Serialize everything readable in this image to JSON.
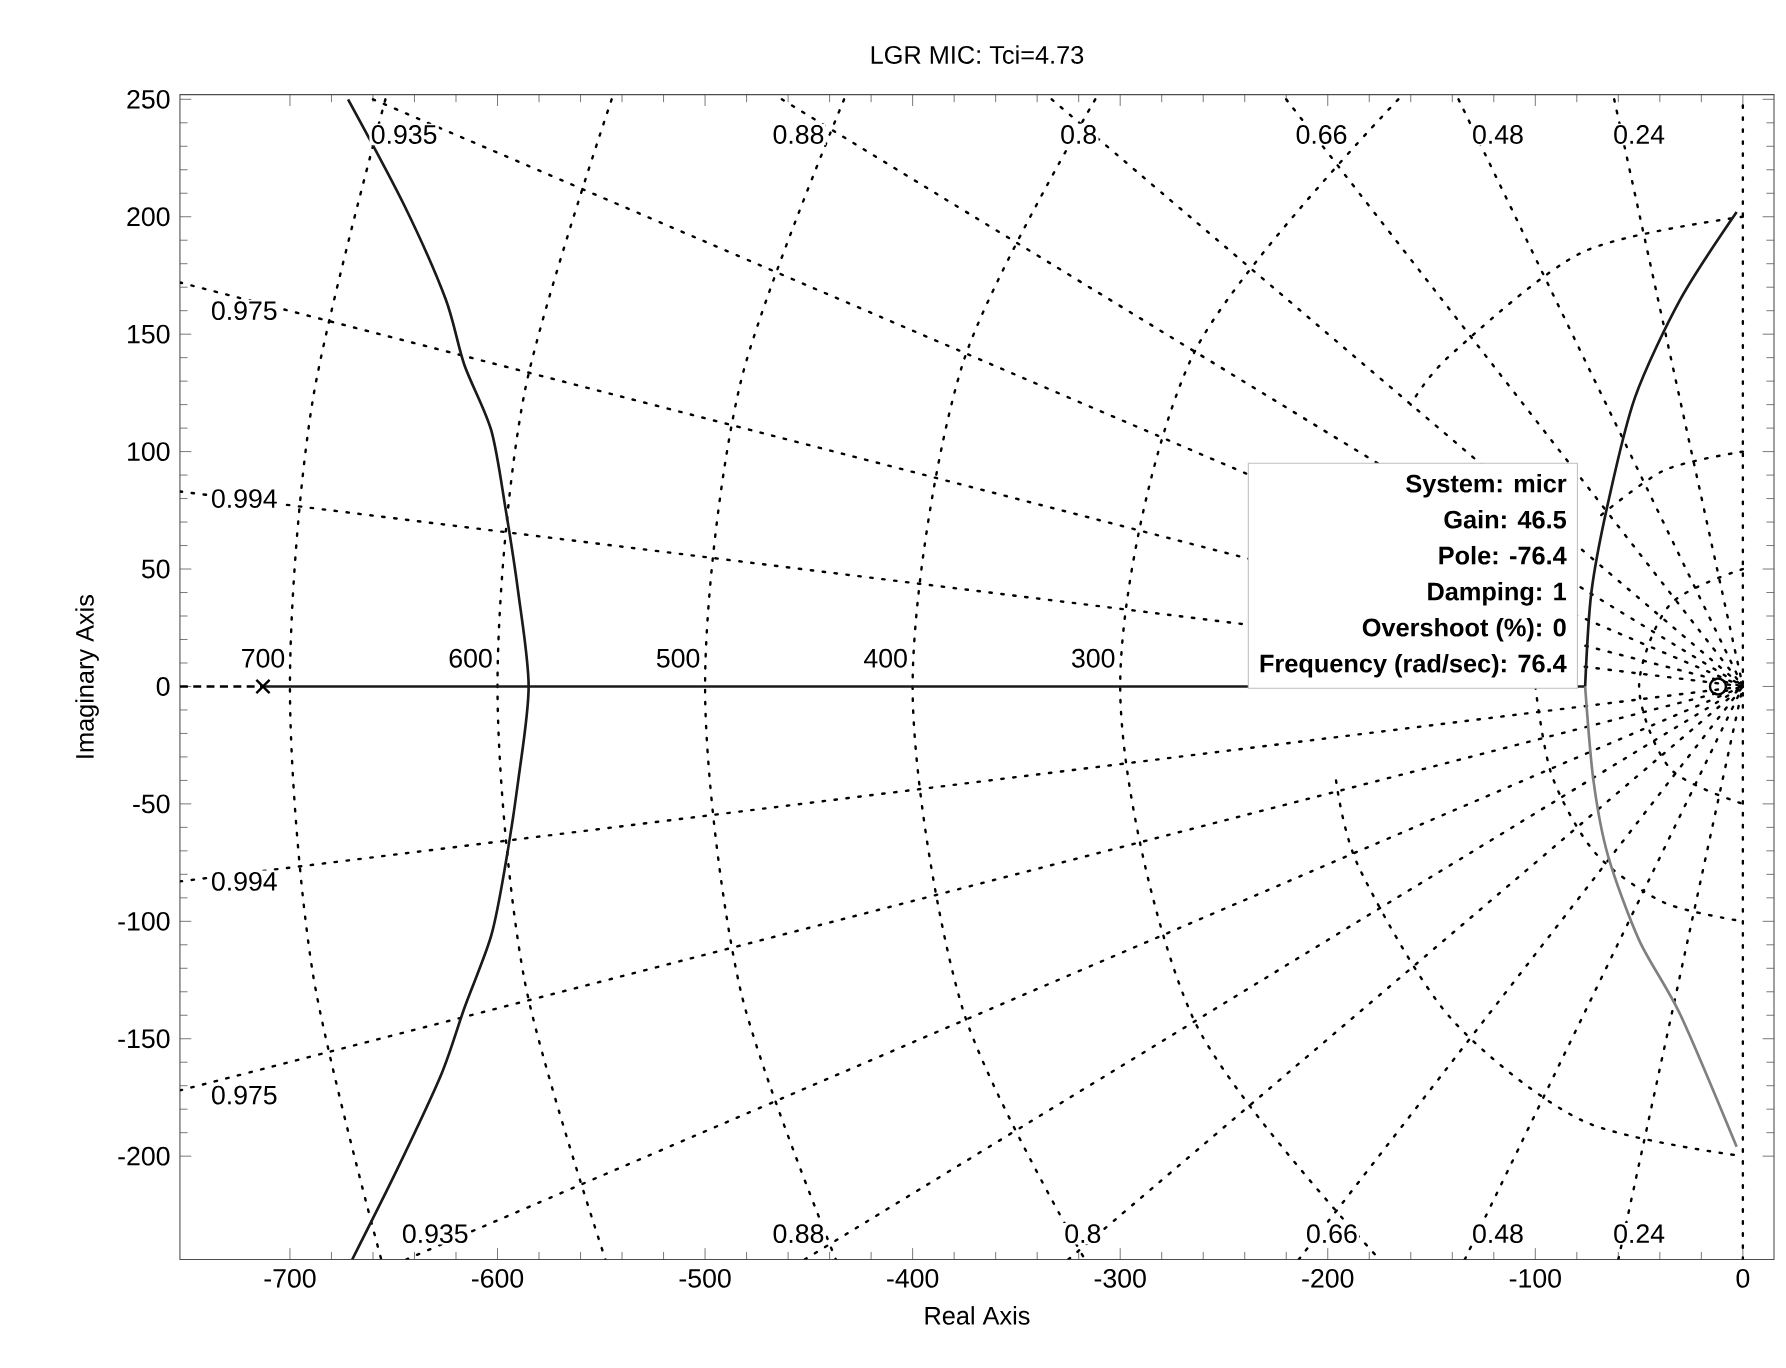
{
  "chart_data": {
    "type": "line",
    "title": "LGR MIC: Tci=4.73",
    "xlabel": "Real Axis",
    "ylabel": "Imaginary Axis",
    "xlim": [
      -753,
      15
    ],
    "ylim": [
      -244,
      252
    ],
    "xticks": [
      -700,
      -600,
      -500,
      -400,
      -300,
      -200,
      -100,
      0
    ],
    "yticks": [
      -200,
      -150,
      -100,
      -50,
      0,
      50,
      100,
      150,
      200,
      250
    ],
    "series": [
      {
        "type": "line",
        "color": "#000000",
        "line_style": "dotted",
        "x": [
          -753,
          0
        ],
        "values": [
          83,
          0
        ]
      },
      {
        "type": "line",
        "color": "#000000",
        "line_style": "dotted",
        "x": [
          -753,
          0
        ],
        "values": [
          -83,
          0
        ]
      },
      {
        "type": "line",
        "color": "#000000",
        "line_style": "dotted",
        "x": [
          -753,
          0
        ],
        "values": [
          172,
          0
        ]
      },
      {
        "type": "line",
        "color": "#000000",
        "line_style": "dotted",
        "x": [
          -753,
          0
        ],
        "values": [
          -172,
          0
        ]
      },
      {
        "type": "line",
        "color": "#000000",
        "line_style": "dotted",
        "x": [
          -660,
          0
        ],
        "values": [
          250,
          0
        ]
      },
      {
        "type": "line",
        "color": "#000000",
        "line_style": "dotted",
        "x": [
          -644,
          0
        ],
        "values": [
          -244,
          0
        ]
      },
      {
        "type": "line",
        "color": "#000000",
        "line_style": "dotted",
        "x": [
          -463,
          0
        ],
        "values": [
          250,
          0
        ]
      },
      {
        "type": "line",
        "color": "#000000",
        "line_style": "dotted",
        "x": [
          -452,
          0
        ],
        "values": [
          -244,
          0
        ]
      },
      {
        "type": "line",
        "color": "#000000",
        "line_style": "dotted",
        "x": [
          -333,
          0
        ],
        "values": [
          250,
          0
        ]
      },
      {
        "type": "line",
        "color": "#000000",
        "line_style": "dotted",
        "x": [
          -325,
          0
        ],
        "values": [
          -244,
          0
        ]
      },
      {
        "type": "line",
        "color": "#000000",
        "line_style": "dotted",
        "x": [
          -220,
          0
        ],
        "values": [
          250,
          0
        ]
      },
      {
        "type": "line",
        "color": "#000000",
        "line_style": "dotted",
        "x": [
          -214,
          0
        ],
        "values": [
          -244,
          0
        ]
      },
      {
        "type": "line",
        "color": "#000000",
        "line_style": "dotted",
        "x": [
          -137,
          0
        ],
        "values": [
          250,
          0
        ]
      },
      {
        "type": "line",
        "color": "#000000",
        "line_style": "dotted",
        "x": [
          -134,
          0
        ],
        "values": [
          -244,
          0
        ]
      },
      {
        "type": "line",
        "color": "#000000",
        "line_style": "dotted",
        "x": [
          -62,
          0
        ],
        "values": [
          250,
          0
        ]
      },
      {
        "type": "line",
        "color": "#000000",
        "line_style": "dotted",
        "x": [
          -60,
          0
        ],
        "values": [
          -244,
          0
        ]
      },
      {
        "type": "line",
        "color": "#000000",
        "line_style": "dotted",
        "x": [
          0,
          0,
          0
        ],
        "values": [
          -244,
          0,
          250
        ]
      },
      {
        "type": "line",
        "color": "#000000",
        "line_style": "dotted",
        "x": [
          -654,
          -689,
          -700,
          -689,
          -656
        ],
        "values": [
          250,
          122,
          0,
          -122,
          -244
        ]
      },
      {
        "type": "line",
        "color": "#000000",
        "line_style": "dotted",
        "x": [
          -545,
          -587,
          -600,
          -587,
          -548
        ],
        "values": [
          250,
          125,
          0,
          -125,
          -244
        ]
      },
      {
        "type": "line",
        "color": "#000000",
        "line_style": "dotted",
        "x": [
          -433,
          -483,
          -500,
          -483,
          -437
        ],
        "values": [
          250,
          129,
          0,
          -129,
          -244
        ]
      },
      {
        "type": "line",
        "color": "#000000",
        "line_style": "dotted",
        "x": [
          -312,
          -376,
          -400,
          -376,
          -317
        ],
        "values": [
          250,
          137,
          0,
          -137,
          -244
        ]
      },
      {
        "type": "line",
        "color": "#000000",
        "line_style": "dotted",
        "x": [
          -166,
          -265,
          -300,
          -265,
          -175
        ],
        "values": [
          250,
          141,
          0,
          -141,
          -244
        ]
      },
      {
        "type": "line",
        "color": "#000000",
        "line_style": "dotted",
        "x": [
          0,
          -77,
          -141,
          -160
        ],
        "values": [
          200,
          185,
          141,
          120
        ]
      },
      {
        "type": "line",
        "color": "#000000",
        "line_style": "dotted",
        "x": [
          -196,
          -185,
          -141,
          -77,
          0
        ],
        "values": [
          -40,
          -77,
          -141,
          -185,
          -200
        ]
      },
      {
        "type": "line",
        "color": "#000000",
        "line_style": "dotted",
        "x": [
          0,
          -38,
          -71,
          -92,
          -100,
          -92,
          -71,
          -38,
          0
        ],
        "values": [
          100,
          92,
          71,
          null,
          0,
          -38,
          -71,
          -92,
          -100
        ]
      },
      {
        "type": "line",
        "color": "#000000",
        "line_style": "dotted",
        "x": [
          0,
          -35,
          -50,
          -35,
          0
        ],
        "values": [
          50,
          35,
          0,
          -35,
          -50
        ]
      },
      {
        "type": "line",
        "color": "#000000",
        "line_style": "dashed",
        "x": [
          -753,
          -713
        ],
        "values": [
          0,
          0
        ]
      },
      {
        "type": "line",
        "color": "#1a1a1a",
        "line_style": "solid",
        "x": [
          -713,
          -585,
          -76
        ],
        "values": [
          0,
          0,
          0
        ]
      },
      {
        "type": "line",
        "color": "#1a1a1a",
        "line_style": "solid",
        "x": [
          -672,
          -645,
          -625,
          -616,
          -603,
          -596,
          -590,
          -585,
          -590,
          -596,
          -603,
          -616,
          -627,
          -648,
          -670
        ],
        "values": [
          250,
          205,
          165,
          137,
          109,
          75,
          40,
          0,
          -40,
          -75,
          -106,
          -137,
          -165,
          -205,
          -244
        ]
      },
      {
        "type": "line",
        "color": "#1a1a1a",
        "line_style": "solid",
        "x": [
          -76,
          -73,
          -65,
          -52,
          -30,
          -3
        ],
        "values": [
          0,
          40,
          78,
          123,
          165,
          202
        ]
      },
      {
        "type": "line",
        "color": "#808080",
        "line_style": "solid",
        "x": [
          -76,
          -72,
          -65,
          -50,
          -30,
          -3
        ],
        "values": [
          0,
          -40,
          -72,
          -108,
          -140,
          -196
        ]
      },
      {
        "type": "scatter",
        "color": "#000000",
        "marker": "cross",
        "x": [
          -713
        ],
        "values": [
          0
        ]
      },
      {
        "type": "scatter",
        "color": "#000000",
        "marker": "circle",
        "x": [
          -12
        ],
        "values": [
          0
        ]
      }
    ],
    "annotations": [
      {
        "text": "0.935",
        "x": -645,
        "y": 235
      },
      {
        "text": "0.88",
        "x": -455,
        "y": 235
      },
      {
        "text": "0.8",
        "x": -320,
        "y": 235
      },
      {
        "text": "0.66",
        "x": -203,
        "y": 235
      },
      {
        "text": "0.48",
        "x": -118,
        "y": 235
      },
      {
        "text": "0.24",
        "x": -50,
        "y": 235
      },
      {
        "text": "0.975",
        "x": -722,
        "y": 160
      },
      {
        "text": "0.994",
        "x": -722,
        "y": 80
      },
      {
        "text": "0.994",
        "x": -722,
        "y": -83
      },
      {
        "text": "0.975",
        "x": -722,
        "y": -174
      },
      {
        "text": "0.935",
        "x": -630,
        "y": -233
      },
      {
        "text": "0.88",
        "x": -455,
        "y": -233
      },
      {
        "text": "0.8",
        "x": -318,
        "y": -233
      },
      {
        "text": "0.66",
        "x": -198,
        "y": -233
      },
      {
        "text": "0.48",
        "x": -118,
        "y": -233
      },
      {
        "text": "0.24",
        "x": -50,
        "y": -233
      },
      {
        "text": "700",
        "x": -713,
        "y": 12
      },
      {
        "text": "600",
        "x": -613,
        "y": 12
      },
      {
        "text": "500",
        "x": -513,
        "y": 12
      },
      {
        "text": "400",
        "x": -413,
        "y": 12
      },
      {
        "text": "300",
        "x": -313,
        "y": 12
      },
      "System: micr",
      "Gain: 46.5",
      "Pole: -76.4",
      "Damping: 1",
      "Overshoot (%): 0",
      "Frequency (rad/sec): 76.4"
    ]
  }
}
